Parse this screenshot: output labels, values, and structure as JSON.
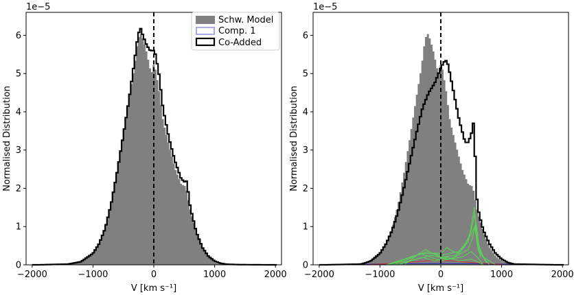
{
  "chart_data": [
    {
      "type": "area",
      "offset_label": "1e−5",
      "xlabel": "V [km s⁻¹]",
      "ylabel": "Normalised Distribution",
      "xlim": [
        -2100,
        2100
      ],
      "ylim": [
        0,
        6.6
      ],
      "xticks": [
        -2000,
        -1000,
        0,
        1000,
        2000
      ],
      "yticks": [
        0,
        1,
        2,
        3,
        4,
        5,
        6
      ],
      "vline_x": 0,
      "legend_position": "top-right",
      "legend": [
        "Schw. Model",
        "Comp. 1",
        "Co-Added"
      ],
      "series": [
        {
          "name": "Schw. Model",
          "style": "filled-histogram",
          "color": "#808080",
          "x": [
            -1900,
            -1400,
            -1200,
            -1000,
            -900,
            -800,
            -700,
            -600,
            -500,
            -400,
            -320,
            -260,
            -220,
            -180,
            -120,
            -60,
            -20,
            0,
            20,
            80,
            150,
            250,
            350,
            450,
            520,
            540,
            600,
            700,
            800,
            900,
            1000,
            1100,
            1200,
            1400,
            1900
          ],
          "y": [
            0.0,
            0.02,
            0.08,
            0.3,
            0.55,
            0.95,
            1.6,
            2.45,
            3.4,
            4.4,
            5.15,
            5.9,
            6.05,
            5.9,
            5.55,
            5.1,
            5.0,
            5.3,
            5.15,
            4.6,
            3.75,
            3.1,
            2.5,
            2.1,
            2.05,
            1.9,
            1.4,
            0.85,
            0.45,
            0.22,
            0.1,
            0.04,
            0.015,
            0.005,
            0.0
          ]
        },
        {
          "name": "Co-Added",
          "style": "step-line",
          "color": "#000000",
          "x": [
            -1900,
            -1400,
            -1200,
            -1000,
            -900,
            -800,
            -700,
            -600,
            -500,
            -400,
            -320,
            -260,
            -220,
            -180,
            -120,
            -60,
            0,
            20,
            80,
            150,
            250,
            350,
            450,
            520,
            540,
            600,
            700,
            800,
            900,
            1000,
            1100,
            1200,
            1400,
            1900
          ],
          "y": [
            0.0,
            0.02,
            0.08,
            0.3,
            0.55,
            0.95,
            1.6,
            2.45,
            3.4,
            4.4,
            5.3,
            6.0,
            6.2,
            6.0,
            5.75,
            5.6,
            5.6,
            5.55,
            5.05,
            4.1,
            3.3,
            2.7,
            2.25,
            2.15,
            2.2,
            1.5,
            0.85,
            0.45,
            0.22,
            0.1,
            0.04,
            0.015,
            0.005,
            0.0
          ]
        }
      ]
    },
    {
      "type": "area",
      "offset_label": "1e−5",
      "xlabel": "V [km s⁻¹]",
      "ylabel": "Normalised Distribution",
      "xlim": [
        -2100,
        2100
      ],
      "ylim": [
        0,
        6.6
      ],
      "xticks": [
        -2000,
        -1000,
        0,
        1000,
        2000
      ],
      "yticks": [
        0,
        1,
        2,
        3,
        4,
        5,
        6
      ],
      "vline_x": 0,
      "series": [
        {
          "name": "Schw. Model",
          "style": "filled-histogram",
          "color": "#808080",
          "x": [
            -1900,
            -1400,
            -1200,
            -1000,
            -900,
            -800,
            -700,
            -600,
            -500,
            -400,
            -320,
            -260,
            -220,
            -180,
            -120,
            -60,
            -20,
            0,
            20,
            80,
            150,
            250,
            350,
            450,
            520,
            540,
            600,
            700,
            800,
            900,
            1000,
            1100,
            1200,
            1400,
            1900
          ],
          "y": [
            0.0,
            0.02,
            0.08,
            0.3,
            0.55,
            0.95,
            1.6,
            2.45,
            3.4,
            4.4,
            5.15,
            5.9,
            6.05,
            5.9,
            5.55,
            5.1,
            5.0,
            5.3,
            5.15,
            4.6,
            3.75,
            3.1,
            2.5,
            2.1,
            2.05,
            1.9,
            1.4,
            0.85,
            0.45,
            0.22,
            0.1,
            0.04,
            0.015,
            0.005,
            0.0
          ]
        },
        {
          "name": "Co-Added",
          "style": "step-line",
          "color": "#000000",
          "x": [
            -1900,
            -1300,
            -1150,
            -1000,
            -900,
            -800,
            -700,
            -600,
            -500,
            -400,
            -300,
            -200,
            -100,
            0,
            50,
            100,
            150,
            200,
            250,
            300,
            350,
            400,
            450,
            500,
            530,
            550,
            570,
            600,
            650,
            700,
            800,
            900,
            1000,
            1100,
            1200,
            1900
          ],
          "y": [
            0.0,
            0.02,
            0.1,
            0.3,
            0.55,
            0.9,
            1.4,
            2.05,
            2.75,
            3.45,
            4.1,
            4.5,
            4.75,
            5.15,
            5.3,
            5.35,
            5.0,
            4.6,
            4.2,
            3.8,
            3.5,
            3.2,
            3.2,
            3.4,
            3.65,
            3.85,
            2.5,
            1.55,
            1.2,
            0.9,
            0.55,
            0.3,
            0.15,
            0.06,
            0.02,
            0.0
          ]
        },
        {
          "name": "Comp. 1",
          "style": "line",
          "color": "#1f1fbf",
          "x": [
            -1900,
            -1300,
            -1000,
            -500,
            0,
            500,
            900,
            1900
          ],
          "y": [
            0.0,
            0.01,
            0.02,
            0.03,
            0.03,
            0.03,
            0.02,
            0.0
          ]
        },
        {
          "name": "",
          "style": "line",
          "color": "#d03030",
          "x": [
            -1200,
            -800,
            -400,
            -100,
            200,
            500,
            800,
            1100
          ],
          "y": [
            0.0,
            0.04,
            0.08,
            0.12,
            0.1,
            0.06,
            0.03,
            0.0
          ]
        },
        {
          "name": "",
          "style": "line",
          "color": "#55dd55",
          "x": [
            -900,
            -600,
            -400,
            -300,
            -250,
            -150,
            0,
            150,
            300,
            450,
            500,
            530,
            550,
            600,
            700,
            900
          ],
          "y": [
            0.0,
            0.1,
            0.25,
            0.35,
            0.4,
            0.3,
            0.25,
            0.3,
            0.35,
            0.6,
            1.0,
            1.3,
            1.5,
            0.6,
            0.2,
            0.0
          ]
        },
        {
          "name": "",
          "style": "line",
          "color": "#55dd55",
          "x": [
            -900,
            -600,
            -300,
            0,
            100,
            200,
            300,
            400,
            500,
            540,
            560,
            600,
            750
          ],
          "y": [
            0.0,
            0.15,
            0.3,
            0.3,
            0.45,
            0.35,
            0.3,
            0.5,
            0.9,
            1.2,
            1.35,
            0.5,
            0.05
          ]
        },
        {
          "name": "",
          "style": "line",
          "color": "#55dd55",
          "x": [
            -850,
            -500,
            -200,
            0,
            250,
            400,
            500,
            560,
            620,
            800
          ],
          "y": [
            0.0,
            0.2,
            0.35,
            0.2,
            0.25,
            0.55,
            0.8,
            1.0,
            0.35,
            0.0
          ]
        },
        {
          "name": "",
          "style": "line",
          "color": "#55dd55",
          "x": [
            -700,
            -400,
            -150,
            100,
            350,
            500,
            600,
            700
          ],
          "y": [
            0.0,
            0.15,
            0.25,
            0.15,
            0.2,
            0.35,
            0.2,
            0.0
          ]
        },
        {
          "name": "",
          "style": "line",
          "color": "#55dd55",
          "x": [
            -800,
            -500,
            -300,
            -100,
            100,
            300,
            500,
            700
          ],
          "y": [
            0.0,
            0.1,
            0.2,
            0.1,
            0.2,
            0.1,
            0.15,
            0.0
          ]
        },
        {
          "name": "",
          "style": "line",
          "color": "#55dd55",
          "x": [
            -600,
            -350,
            -200,
            0,
            200,
            450,
            520,
            580,
            650
          ],
          "y": [
            0.0,
            0.3,
            0.22,
            0.1,
            0.18,
            0.4,
            0.7,
            1.1,
            0.2
          ]
        }
      ]
    }
  ]
}
